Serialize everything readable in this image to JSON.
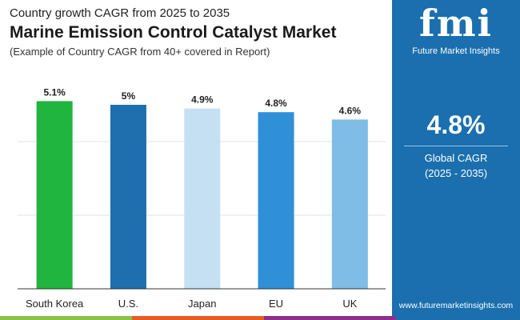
{
  "header": {
    "subtitle": "Country growth CAGR from 2025 to 2035",
    "title": "Marine Emission Control Catalyst Market",
    "note": "(Example of Country CAGR from 40+ covered in Report)"
  },
  "panel": {
    "logo_text": "Future Market Insights",
    "logo_mark": "fmi",
    "value": "4.8%",
    "label_line1": "Global CAGR",
    "label_line2": "(2025 - 2035)",
    "url": "www.futuremarketinsights.com"
  },
  "colors": {
    "panel": "#1b6fae",
    "strip": [
      "#8bc34a",
      "#e85d25",
      "#8e2f8e",
      "#1b6fae"
    ]
  },
  "chart_data": {
    "type": "bar",
    "categories": [
      "South Korea",
      "U.S.",
      "Japan",
      "EU",
      "UK"
    ],
    "values": [
      5.1,
      5.0,
      4.9,
      4.8,
      4.6
    ],
    "data_labels": [
      "5.1%",
      "5%",
      "4.9%",
      "4.8%",
      "4.6%"
    ],
    "colors": [
      "#1fb53f",
      "#1f6fae",
      "#c6e0f3",
      "#2f90d7",
      "#7fbde6"
    ],
    "ylim": [
      0,
      6
    ],
    "grid": true,
    "xlabel": "",
    "ylabel": ""
  }
}
